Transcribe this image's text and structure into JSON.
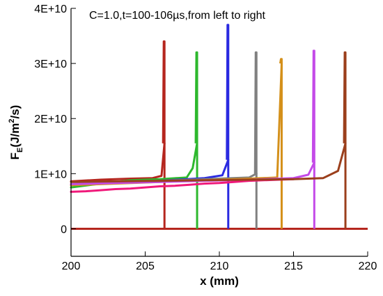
{
  "chart_data": {
    "type": "line",
    "annotation": "C=1.0,t=100-106µs,from left to right",
    "xlabel": "x (mm)",
    "ylabel": {
      "base": "F",
      "sub": "E",
      "unit_pre": "(J/m",
      "unit_sup": "2",
      "unit_post": "/s)"
    },
    "xlim": [
      200,
      220
    ],
    "ylim": [
      -5000000000,
      40000000000
    ],
    "x_ticks": [
      200,
      205,
      210,
      215,
      220
    ],
    "x_tick_labels": [
      "200",
      "205",
      "210",
      "215",
      "220"
    ],
    "y_ticks": [
      0,
      10000000000,
      20000000000,
      30000000000,
      40000000000
    ],
    "y_tick_labels": [
      "0",
      "1E+10",
      "2E+10",
      "3E+10",
      "4E+10"
    ],
    "grid": false,
    "series": [
      {
        "color": "#b5261e",
        "front_x": 206.3,
        "peak": 34000000000,
        "pre": 15500000000,
        "x": [
          200,
          202,
          204,
          205.5,
          206.1,
          206.3
        ],
        "y": [
          8600000000,
          8900000000,
          9100000000,
          9200000000,
          9600000000,
          15500000000
        ]
      },
      {
        "color": "#2db82d",
        "front_x": 208.5,
        "peak": 32000000000,
        "pre": 15500000000,
        "x": [
          200,
          202,
          204,
          206,
          207.8,
          208.2,
          208.5
        ],
        "y": [
          7500000000,
          8200000000,
          8800000000,
          9000000000,
          9300000000,
          11000000000,
          15500000000
        ]
      },
      {
        "color": "#2a2ae0",
        "front_x": 210.6,
        "peak": 37000000000,
        "pre": 12500000000,
        "x": [
          200,
          203,
          206,
          209,
          210.2,
          210.6
        ],
        "y": [
          8000000000,
          8300000000,
          8700000000,
          9200000000,
          9700000000,
          12500000000
        ]
      },
      {
        "color": "#808080",
        "front_x": 212.5,
        "peak": 32000000000,
        "pre": 10000000000,
        "x": [
          200,
          203,
          206,
          209,
          212,
          212.5
        ],
        "y": [
          8100000000,
          8400000000,
          8700000000,
          9000000000,
          9300000000,
          10000000000
        ]
      },
      {
        "color": "#d4901a",
        "front_x": 214.2,
        "peak": 30800000000,
        "pre": 30000000000,
        "x": [
          200,
          203,
          206,
          209,
          212,
          213.9,
          214.2
        ],
        "y": [
          7900000000,
          8200000000,
          8500000000,
          8800000000,
          9100000000,
          9300000000,
          30000000000
        ]
      },
      {
        "color": "#c44ae8",
        "front_x": 216.4,
        "peak": 32300000000,
        "pre": 12000000000,
        "x": [
          200,
          203,
          206,
          209,
          212,
          215,
          216,
          216.4
        ],
        "y": [
          8100000000,
          8300000000,
          8500000000,
          8700000000,
          8900000000,
          9200000000,
          9800000000,
          12000000000
        ]
      },
      {
        "color": "#f0197a",
        "front_x": null,
        "peak": null,
        "pre": null,
        "x": [
          200,
          201,
          202,
          203,
          204,
          205,
          206,
          207,
          208,
          209,
          210,
          211,
          212,
          213,
          214,
          215
        ],
        "y": [
          6700000000,
          6800000000,
          7000000000,
          7200000000,
          7300000000,
          7500000000,
          7700000000,
          7800000000,
          8000000000,
          8200000000,
          8300000000,
          8500000000,
          8700000000,
          8800000000,
          8900000000,
          9000000000
        ]
      },
      {
        "color": "#9b3f1c",
        "front_x": 218.5,
        "peak": 32000000000,
        "pre": 15500000000,
        "x": [
          200,
          203,
          206,
          209,
          212,
          215,
          217,
          218,
          218.5
        ],
        "y": [
          8500000000,
          8600000000,
          8700000000,
          8800000000,
          8900000000,
          9000000000,
          9200000000,
          10500000000,
          15500000000
        ]
      }
    ],
    "baseline": {
      "color": "#b5261e",
      "y": 0
    }
  }
}
